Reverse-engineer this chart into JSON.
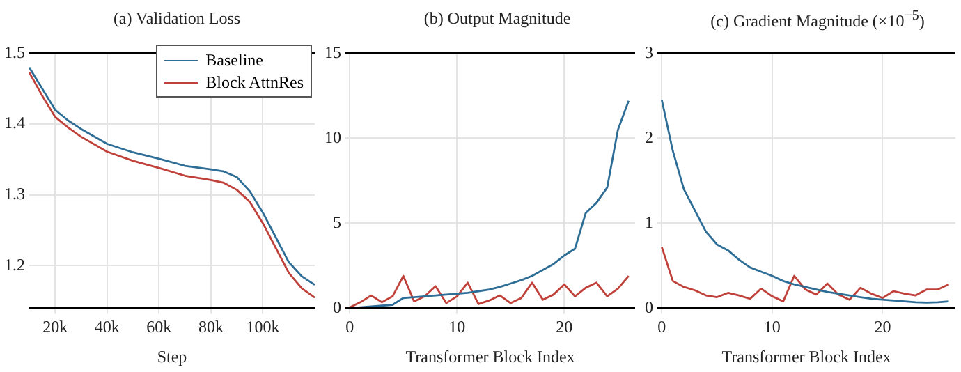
{
  "chart_data": [
    {
      "type": "line",
      "title": "(a) Validation Loss",
      "xlabel": "Step",
      "x": [
        10000,
        15000,
        20000,
        25000,
        30000,
        40000,
        50000,
        60000,
        70000,
        80000,
        85000,
        90000,
        95000,
        100000,
        105000,
        110000,
        115000,
        120000
      ],
      "series": [
        {
          "name": "Baseline",
          "color": "#2e6e96",
          "values": [
            1.48,
            1.45,
            1.42,
            1.405,
            1.393,
            1.372,
            1.36,
            1.351,
            1.341,
            1.336,
            1.333,
            1.325,
            1.305,
            1.275,
            1.24,
            1.205,
            1.185,
            1.173
          ]
        },
        {
          "name": "Block AttnRes",
          "color": "#c0403a",
          "values": [
            1.473,
            1.44,
            1.41,
            1.395,
            1.382,
            1.361,
            1.348,
            1.338,
            1.327,
            1.321,
            1.317,
            1.307,
            1.29,
            1.26,
            1.225,
            1.19,
            1.168,
            1.155
          ]
        }
      ],
      "xlim": [
        10000,
        120000
      ],
      "xticks": [
        {
          "value": 20000,
          "label": "20k"
        },
        {
          "value": 40000,
          "label": "40k"
        },
        {
          "value": 60000,
          "label": "60k"
        },
        {
          "value": 80000,
          "label": "80k"
        },
        {
          "value": 100000,
          "label": "100k"
        }
      ],
      "ylim": [
        1.14,
        1.5
      ],
      "yticks": [
        1.2,
        1.3,
        1.4,
        1.5
      ],
      "grid": true,
      "legend": "top right",
      "marker": "none",
      "line_style": "solid"
    },
    {
      "type": "line",
      "title": "(b) Output Magnitude",
      "xlabel": "Transformer Block Index",
      "x": [
        0,
        1,
        2,
        3,
        4,
        5,
        6,
        7,
        8,
        9,
        10,
        11,
        12,
        13,
        14,
        15,
        16,
        17,
        18,
        19,
        20,
        21,
        22,
        23,
        24,
        25,
        26
      ],
      "series": [
        {
          "color": "#2e6e96",
          "values": [
            0,
            0.05,
            0.1,
            0.15,
            0.2,
            0.6,
            0.65,
            0.7,
            0.75,
            0.8,
            0.85,
            0.9,
            1.0,
            1.1,
            1.25,
            1.45,
            1.65,
            1.9,
            2.25,
            2.6,
            3.1,
            3.5,
            5.6,
            6.2,
            7.1,
            10.5,
            12.2
          ]
        },
        {
          "color": "#c0403a",
          "values": [
            0.05,
            0.35,
            0.75,
            0.35,
            0.7,
            1.9,
            0.4,
            0.7,
            1.3,
            0.3,
            0.7,
            1.5,
            0.25,
            0.45,
            0.75,
            0.3,
            0.6,
            1.5,
            0.5,
            0.8,
            1.4,
            0.7,
            1.2,
            1.5,
            0.7,
            1.15,
            1.9
          ]
        }
      ],
      "xlim": [
        -0.4,
        26.6
      ],
      "xticks": [
        0,
        10,
        20
      ],
      "ylim": [
        0,
        15
      ],
      "yticks": [
        0,
        5,
        10,
        15
      ],
      "grid": true,
      "marker": "none",
      "line_style": "solid"
    },
    {
      "type": "line",
      "title": "(c) Gradient Magnitude (×10$^{−5}$)",
      "xlabel": "Transformer Block Index",
      "x": [
        0,
        1,
        2,
        3,
        4,
        5,
        6,
        7,
        8,
        9,
        10,
        11,
        12,
        13,
        14,
        15,
        16,
        17,
        18,
        19,
        20,
        21,
        22,
        23,
        24,
        25,
        26
      ],
      "series": [
        {
          "color": "#2e6e96",
          "values": [
            2.45,
            1.85,
            1.4,
            1.15,
            0.9,
            0.75,
            0.68,
            0.57,
            0.48,
            0.43,
            0.38,
            0.32,
            0.28,
            0.25,
            0.22,
            0.19,
            0.17,
            0.15,
            0.13,
            0.11,
            0.1,
            0.09,
            0.08,
            0.07,
            0.065,
            0.07,
            0.08
          ]
        },
        {
          "color": "#c0403a",
          "values": [
            0.72,
            0.32,
            0.25,
            0.21,
            0.15,
            0.13,
            0.18,
            0.15,
            0.11,
            0.23,
            0.14,
            0.08,
            0.38,
            0.22,
            0.16,
            0.29,
            0.16,
            0.1,
            0.24,
            0.17,
            0.12,
            0.2,
            0.17,
            0.15,
            0.22,
            0.22,
            0.28
          ]
        }
      ],
      "xlim": [
        -0.4,
        26.6
      ],
      "xticks": [
        0,
        10,
        20
      ],
      "ylim": [
        0,
        3
      ],
      "yticks": [
        0,
        1,
        2,
        3
      ],
      "grid": true,
      "marker": "none",
      "line_style": "solid"
    }
  ]
}
